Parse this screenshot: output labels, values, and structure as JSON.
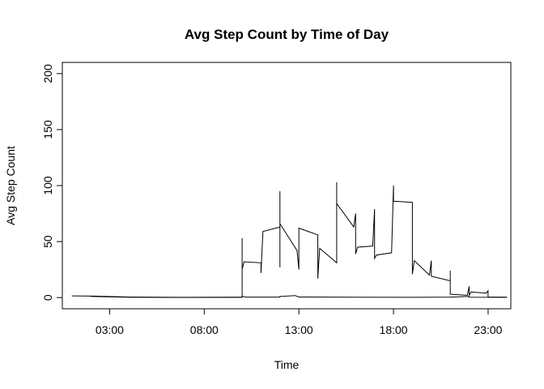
{
  "chart_data": {
    "type": "line",
    "title": "Avg Step Count by Time of Day",
    "xlabel": "Time",
    "ylabel": "Avg Step Count",
    "x_unit": "hours since 00:00",
    "xlim": [
      0.5,
      24.2
    ],
    "ylim": [
      -10,
      210
    ],
    "x_ticks": [
      {
        "value": 3,
        "label": "03:00"
      },
      {
        "value": 8,
        "label": "08:00"
      },
      {
        "value": 13,
        "label": "13:00"
      },
      {
        "value": 18,
        "label": "18:00"
      },
      {
        "value": 23,
        "label": "23:00"
      }
    ],
    "y_ticks": [
      {
        "value": 0,
        "label": "0"
      },
      {
        "value": 50,
        "label": "50"
      },
      {
        "value": 100,
        "label": "100"
      },
      {
        "value": 150,
        "label": "150"
      },
      {
        "value": 200,
        "label": "200"
      }
    ],
    "grid": false,
    "series": [
      {
        "points": [
          [
            1.0,
            1.5
          ],
          [
            2.2,
            1.3
          ],
          [
            4.0,
            0.5
          ],
          [
            6.0,
            0.2
          ],
          [
            9.8,
            0.3
          ],
          [
            10.0,
            0.2
          ],
          [
            10.0,
            53
          ],
          [
            10.0,
            25
          ],
          [
            10.1,
            32
          ],
          [
            11.0,
            31
          ],
          [
            11.0,
            22
          ],
          [
            11.1,
            59
          ],
          [
            12.0,
            63
          ],
          [
            12.0,
            27
          ],
          [
            12.0,
            95
          ],
          [
            12.0,
            66
          ],
          [
            12.9,
            42
          ],
          [
            13.0,
            25
          ],
          [
            13.0,
            62
          ],
          [
            14.0,
            56
          ],
          [
            14.0,
            17
          ],
          [
            14.1,
            44
          ],
          [
            15.0,
            31
          ],
          [
            15.0,
            103
          ],
          [
            15.0,
            84
          ],
          [
            15.9,
            63
          ],
          [
            16.0,
            75
          ],
          [
            16.0,
            39
          ],
          [
            16.1,
            45
          ],
          [
            16.9,
            46
          ],
          [
            17.0,
            79
          ],
          [
            17.0,
            35
          ],
          [
            17.1,
            38
          ],
          [
            17.9,
            40
          ],
          [
            18.0,
            100
          ],
          [
            18.0,
            86
          ],
          [
            19.0,
            85
          ],
          [
            19.0,
            21
          ],
          [
            19.1,
            33
          ],
          [
            19.9,
            20
          ],
          [
            20.0,
            33
          ],
          [
            20.0,
            19
          ],
          [
            21.0,
            15
          ],
          [
            21.0,
            24
          ],
          [
            21.0,
            3
          ],
          [
            21.9,
            2
          ],
          [
            22.0,
            10
          ],
          [
            22.0,
            2
          ],
          [
            22.1,
            5
          ],
          [
            22.9,
            4
          ],
          [
            23.0,
            6
          ],
          [
            23.0,
            0.5
          ],
          [
            24.0,
            0.3
          ]
        ]
      },
      {
        "points": [
          [
            2.0,
            1.0
          ],
          [
            4.0,
            0.3
          ],
          [
            7.0,
            0.1
          ],
          [
            10.0,
            0.3
          ],
          [
            10.0,
            1.2
          ],
          [
            10.2,
            0.4
          ],
          [
            12.0,
            0.4
          ],
          [
            12.0,
            1.0
          ],
          [
            12.8,
            1.8
          ],
          [
            13.0,
            0.5
          ],
          [
            16.0,
            0.3
          ],
          [
            19.0,
            0.2
          ],
          [
            21.0,
            0.4
          ],
          [
            22.0,
            1.0
          ],
          [
            22.0,
            0.3
          ],
          [
            24.0,
            0.2
          ]
        ]
      }
    ]
  }
}
